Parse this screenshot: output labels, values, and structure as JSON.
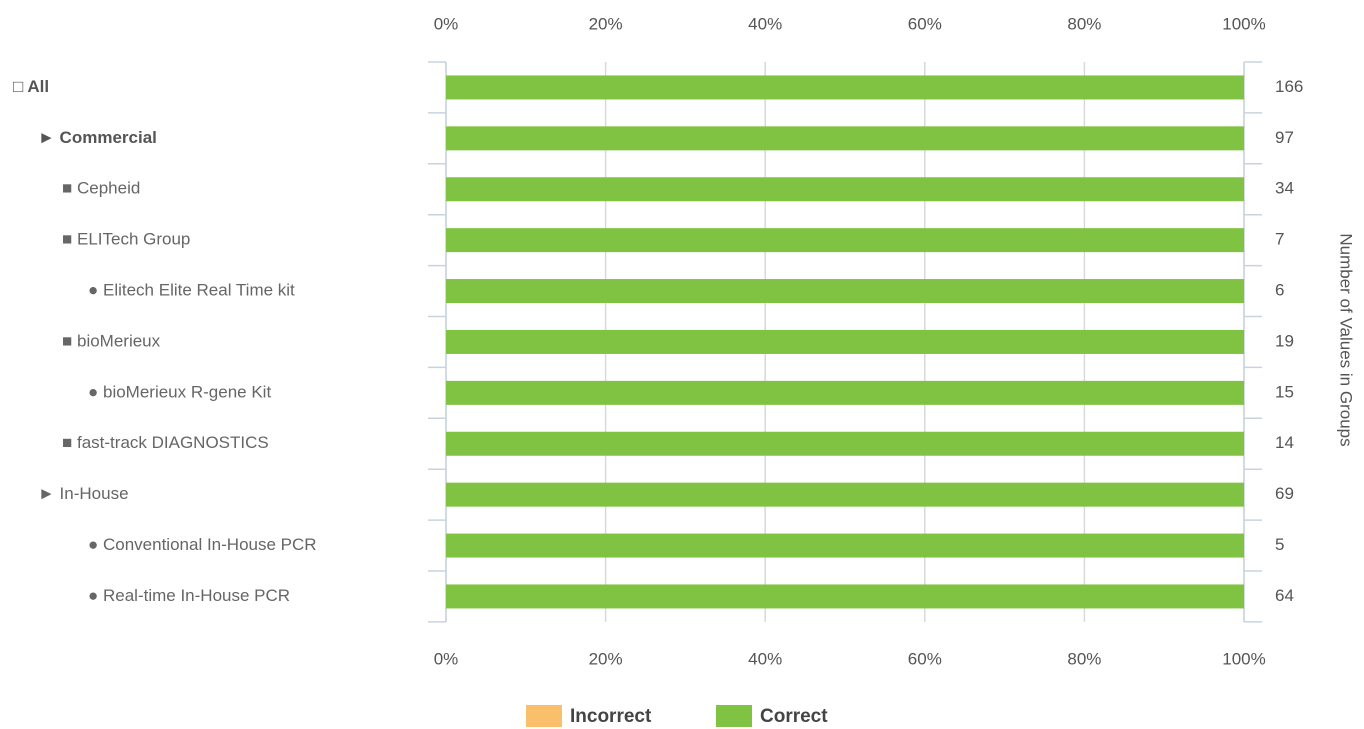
{
  "chart_data": {
    "type": "stacked-bar-horizontal",
    "categories": [
      "□ All",
      "► Commercial",
      "■ Cepheid",
      "■ ELITech Group",
      "● Elitech Elite Real Time kit",
      "■ bioMerieux",
      "● bioMerieux R-gene Kit",
      "■ fast-track DIAGNOSTICS",
      "► In-House",
      "● Conventional In-House PCR",
      "● Real-time In-House PCR"
    ],
    "series": [
      {
        "name": "Incorrect",
        "color": "#f9bf6b",
        "values": [
          0,
          0,
          0,
          0,
          0,
          0,
          0,
          0,
          0,
          0,
          0
        ]
      },
      {
        "name": "Correct",
        "color": "#80c342",
        "values": [
          100,
          100,
          100,
          100,
          100,
          100,
          100,
          100,
          100,
          100,
          100
        ]
      }
    ],
    "group_counts": [
      166,
      97,
      34,
      7,
      6,
      19,
      15,
      14,
      69,
      5,
      64
    ],
    "y2_label": "Number of Values in Groups",
    "xlim": [
      0,
      100
    ],
    "xticks": [
      {
        "value": 0,
        "label": "0%"
      },
      {
        "value": 20,
        "label": "20%"
      },
      {
        "value": 40,
        "label": "40%"
      },
      {
        "value": 60,
        "label": "60%"
      },
      {
        "value": 80,
        "label": "80%"
      },
      {
        "value": 100,
        "label": "100%"
      }
    ],
    "grid": true
  }
}
